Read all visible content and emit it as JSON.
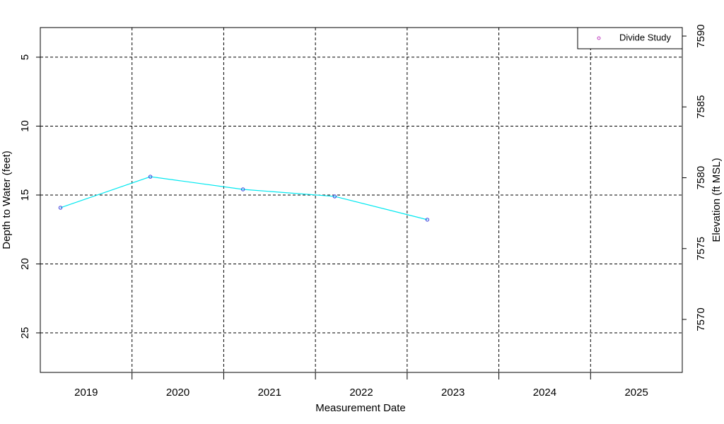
{
  "chart_data": {
    "type": "line",
    "x_label": "Measurement Date",
    "y_label": "Depth to Water (feet)",
    "y2_label": "Elevation (ft MSL)",
    "xlim": [
      2019.0,
      2026.0
    ],
    "xticks": [
      {
        "value": 2019.5,
        "label": "2019"
      },
      {
        "value": 2020.5,
        "label": "2020"
      },
      {
        "value": 2021.5,
        "label": "2021"
      },
      {
        "value": 2022.5,
        "label": "2022"
      },
      {
        "value": 2023.5,
        "label": "2023"
      },
      {
        "value": 2024.5,
        "label": "2024"
      },
      {
        "value": 2025.5,
        "label": "2025"
      }
    ],
    "xgrid": [
      2020,
      2021,
      2022,
      2023,
      2024,
      2025
    ],
    "ylim": [
      2.85,
      27.87
    ],
    "y_inverted": true,
    "yticks": [
      5,
      10,
      15,
      20,
      25
    ],
    "y2lim": [
      7566.26,
      7590.6
    ],
    "y2ticks": [
      7570,
      7575,
      7580,
      7585,
      7590
    ],
    "grid": true,
    "legend": "top-right",
    "series": [
      {
        "name": "Divide Study",
        "color": "#00e8f0",
        "marker_color": "#3a3adc",
        "legend_marker_color": "#c040c0",
        "x": [
          2019.22,
          2020.2,
          2021.21,
          2022.21,
          2023.22
        ],
        "values": [
          15.92,
          13.67,
          14.59,
          15.1,
          16.79
        ]
      }
    ]
  }
}
